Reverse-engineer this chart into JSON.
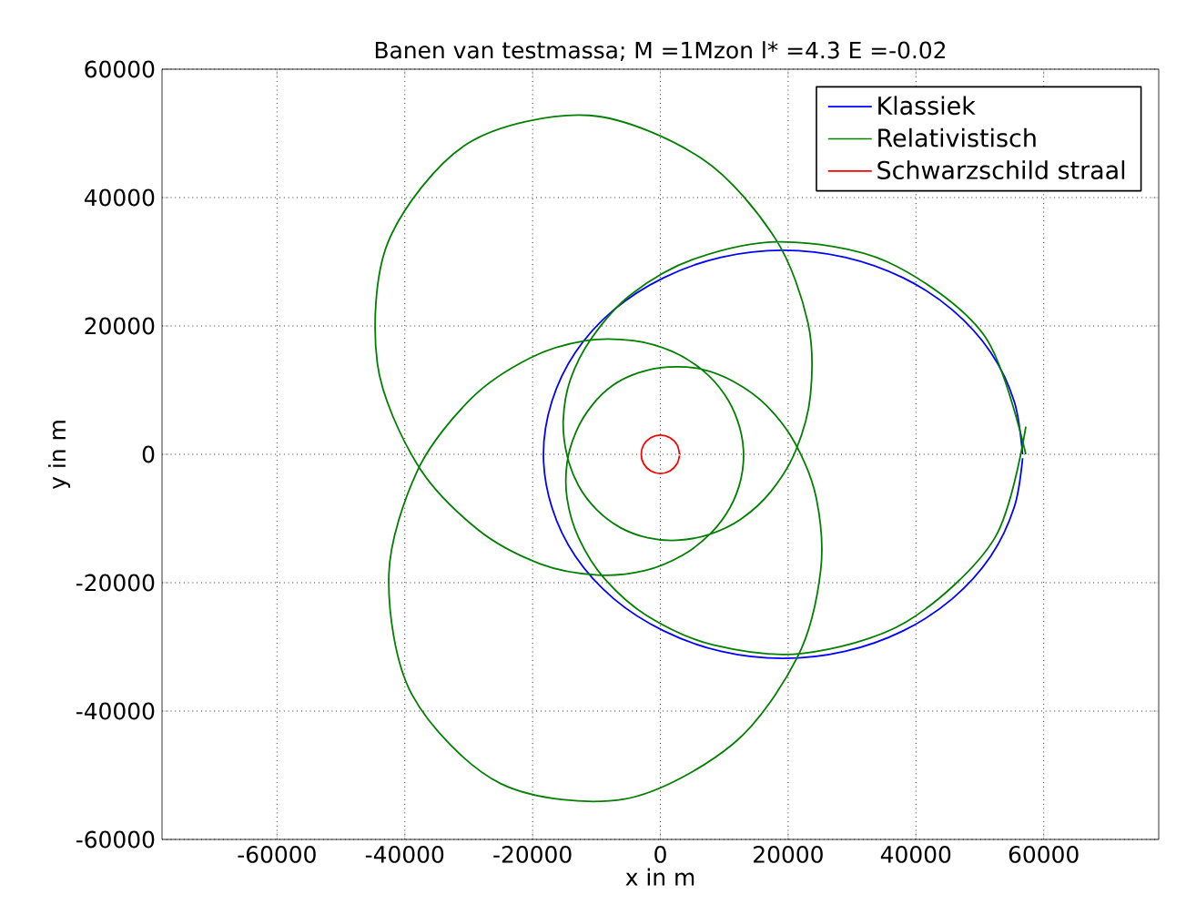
{
  "chart_data": {
    "type": "line",
    "title": "Banen van testmassa; M =1Mzon l* =4.3 E =-0.02",
    "xlabel": "x in m",
    "ylabel": "y in m",
    "xlim": [
      -78000,
      78000
    ],
    "ylim": [
      -60000,
      60000
    ],
    "xticks": [
      -60000,
      -40000,
      -20000,
      0,
      20000,
      40000,
      60000
    ],
    "yticks": [
      -60000,
      -40000,
      -20000,
      0,
      20000,
      40000,
      60000
    ],
    "grid": true,
    "legend": "top right",
    "line_style": "solid",
    "series": [
      {
        "name": "Klassiek",
        "color": "#0000ff",
        "x": [
          56700,
          55400,
          51700,
          45700,
          38000,
          28900,
          19200,
          9500,
          500,
          -7300,
          -13300,
          -17000,
          -18300,
          -17000,
          -13300,
          -7300,
          500,
          9500,
          19200,
          28900,
          38000,
          45700,
          51700,
          55400,
          56700
        ],
        "values": [
          0,
          8200,
          15900,
          22500,
          27500,
          30700,
          31800,
          30700,
          27500,
          22500,
          15900,
          8200,
          0,
          -8200,
          -15900,
          -22500,
          -27500,
          -30700,
          -31800,
          -30700,
          -27500,
          -22500,
          -15900,
          -8200,
          -600
        ]
      },
      {
        "name": "Relativistisch",
        "color": "#007f00",
        "x": [
          57200,
          50700,
          35500,
          18900,
          5200,
          -4600,
          -10700,
          -14100,
          -15200,
          -14600,
          -12800,
          -10000,
          -6300,
          -2000,
          2600,
          7600,
          12600,
          17300,
          21200,
          23500,
          23100,
          18000,
          6600,
          -11100,
          -30200,
          -42600,
          -44300,
          -38100,
          -28600,
          -18700,
          -9800,
          -2400,
          3500,
          7900,
          10900,
          12600,
          13000,
          12100,
          10000,
          6600,
          1900,
          -4200,
          -11700,
          -20400,
          -29600,
          -38000,
          -42500,
          -38900,
          -25000,
          -5600,
          11400,
          21500,
          25100,
          24400,
          21100,
          16600,
          11500,
          6200,
          1200,
          -3400,
          -7500,
          -10800,
          -13200,
          -14600,
          -14600,
          -12800,
          -8800,
          -2000,
          8300,
          22300,
          38500,
          52300,
          57200
        ],
        "values": [
          0,
          18500,
          30000,
          33100,
          30400,
          24900,
          18200,
          11600,
          5300,
          -200,
          -4900,
          -8600,
          -11400,
          -13000,
          -13400,
          -12500,
          -10100,
          -5800,
          600,
          9300,
          20500,
          33600,
          46000,
          52800,
          48400,
          33100,
          14200,
          -1500,
          -11700,
          -17100,
          -18800,
          -18100,
          -15700,
          -12300,
          -8300,
          -3900,
          700,
          5200,
          9400,
          13100,
          16000,
          17700,
          17700,
          15000,
          8700,
          -2500,
          -18800,
          -37400,
          -51300,
          -53700,
          -45100,
          -31500,
          -18000,
          -6800,
          1700,
          7600,
          11300,
          13300,
          13600,
          12700,
          10700,
          7500,
          3500,
          -1300,
          -6900,
          -13000,
          -19300,
          -25200,
          -29700,
          -31000,
          -26100,
          -13100,
          4300
        ]
      },
      {
        "name": "Schwarzschild straal",
        "color": "#ff0000",
        "x": [
          3000,
          2600,
          1500,
          0,
          -1500,
          -2600,
          -3000,
          -2600,
          -1500,
          0,
          1500,
          2600,
          3000
        ],
        "values": [
          0,
          1500,
          2600,
          3000,
          2600,
          1500,
          0,
          -1500,
          -2600,
          -3000,
          -2600,
          -1500,
          -200
        ]
      }
    ]
  }
}
